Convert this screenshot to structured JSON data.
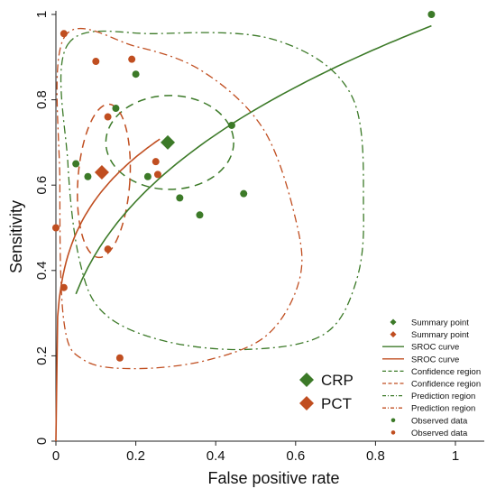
{
  "chart_data": {
    "type": "scatter",
    "xlabel": "False positive rate",
    "ylabel": "Sensitivity",
    "xlim": [
      0,
      1
    ],
    "ylim": [
      0,
      1
    ],
    "x_ticks": [
      "0",
      "0.2",
      "0.4",
      "0.6",
      "0.8",
      "1"
    ],
    "y_ticks": [
      "0",
      "0.2",
      "0.4",
      "0.6",
      "0.8",
      "1"
    ],
    "grid": false,
    "legend_position": "bottom-right",
    "colors": {
      "crp": "#3c7a28",
      "pct": "#c04e20"
    },
    "summary_labels": [
      {
        "key": "crp",
        "label": "CRP"
      },
      {
        "key": "pct",
        "label": "PCT"
      }
    ],
    "legend": [
      {
        "label": "Summary point",
        "kind": "diamond",
        "key": "crp"
      },
      {
        "label": "Summary point",
        "kind": "diamond",
        "key": "pct"
      },
      {
        "label": "SROC curve",
        "kind": "solid",
        "key": "crp"
      },
      {
        "label": "SROC curve",
        "kind": "solid",
        "key": "pct"
      },
      {
        "label": "Confidence region",
        "kind": "dash",
        "key": "crp"
      },
      {
        "label": "Confidence region",
        "kind": "dash",
        "key": "pct"
      },
      {
        "label": "Prediction region",
        "kind": "dashdot",
        "key": "crp"
      },
      {
        "label": "Prediction region",
        "kind": "dashdot",
        "key": "pct"
      },
      {
        "label": "Observed data",
        "kind": "dot",
        "key": "crp"
      },
      {
        "label": "Observed data",
        "kind": "dot",
        "key": "pct"
      }
    ],
    "series": [
      {
        "key": "crp",
        "summary_point": [
          0.28,
          0.7
        ],
        "observed": [
          [
            0.94,
            1.0
          ],
          [
            0.2,
            0.86
          ],
          [
            0.15,
            0.78
          ],
          [
            0.44,
            0.74
          ],
          [
            0.05,
            0.65
          ],
          [
            0.08,
            0.62
          ],
          [
            0.23,
            0.62
          ],
          [
            0.31,
            0.57
          ],
          [
            0.47,
            0.58
          ],
          [
            0.36,
            0.53
          ]
        ],
        "sroc": {
          "x_from": 0.05,
          "x_to": 0.94
        },
        "confidence_region": {
          "cx": 0.285,
          "cy": 0.7,
          "rx": 0.16,
          "ry": 0.11,
          "rot": 0
        },
        "prediction_region": [
          [
            0.03,
            0.93
          ],
          [
            0.25,
            0.955
          ],
          [
            0.55,
            0.94
          ],
          [
            0.74,
            0.81
          ],
          [
            0.77,
            0.54
          ],
          [
            0.75,
            0.37
          ],
          [
            0.67,
            0.25
          ],
          [
            0.48,
            0.215
          ],
          [
            0.27,
            0.235
          ],
          [
            0.12,
            0.3
          ],
          [
            0.06,
            0.42
          ],
          [
            0.03,
            0.65
          ]
        ]
      },
      {
        "key": "pct",
        "summary_point": [
          0.115,
          0.63
        ],
        "observed": [
          [
            0.02,
            0.955
          ],
          [
            0.1,
            0.89
          ],
          [
            0.19,
            0.895
          ],
          [
            0.13,
            0.76
          ],
          [
            0.25,
            0.655
          ],
          [
            0.255,
            0.625
          ],
          [
            0.13,
            0.45
          ],
          [
            0.0,
            0.5
          ],
          [
            0.02,
            0.36
          ],
          [
            0.16,
            0.195
          ]
        ],
        "sroc": {
          "x_from": 0.0,
          "x_to": 0.26
        },
        "confidence_region": {
          "cx": 0.12,
          "cy": 0.61,
          "rx": 0.065,
          "ry": 0.18,
          "rot": 4
        },
        "prediction_region": [
          [
            0.02,
            0.945
          ],
          [
            0.2,
            0.925
          ],
          [
            0.37,
            0.865
          ],
          [
            0.52,
            0.73
          ],
          [
            0.6,
            0.52
          ],
          [
            0.61,
            0.38
          ],
          [
            0.53,
            0.25
          ],
          [
            0.38,
            0.19
          ],
          [
            0.2,
            0.17
          ],
          [
            0.07,
            0.19
          ],
          [
            0.02,
            0.28
          ],
          [
            0.01,
            0.6
          ]
        ]
      }
    ]
  }
}
